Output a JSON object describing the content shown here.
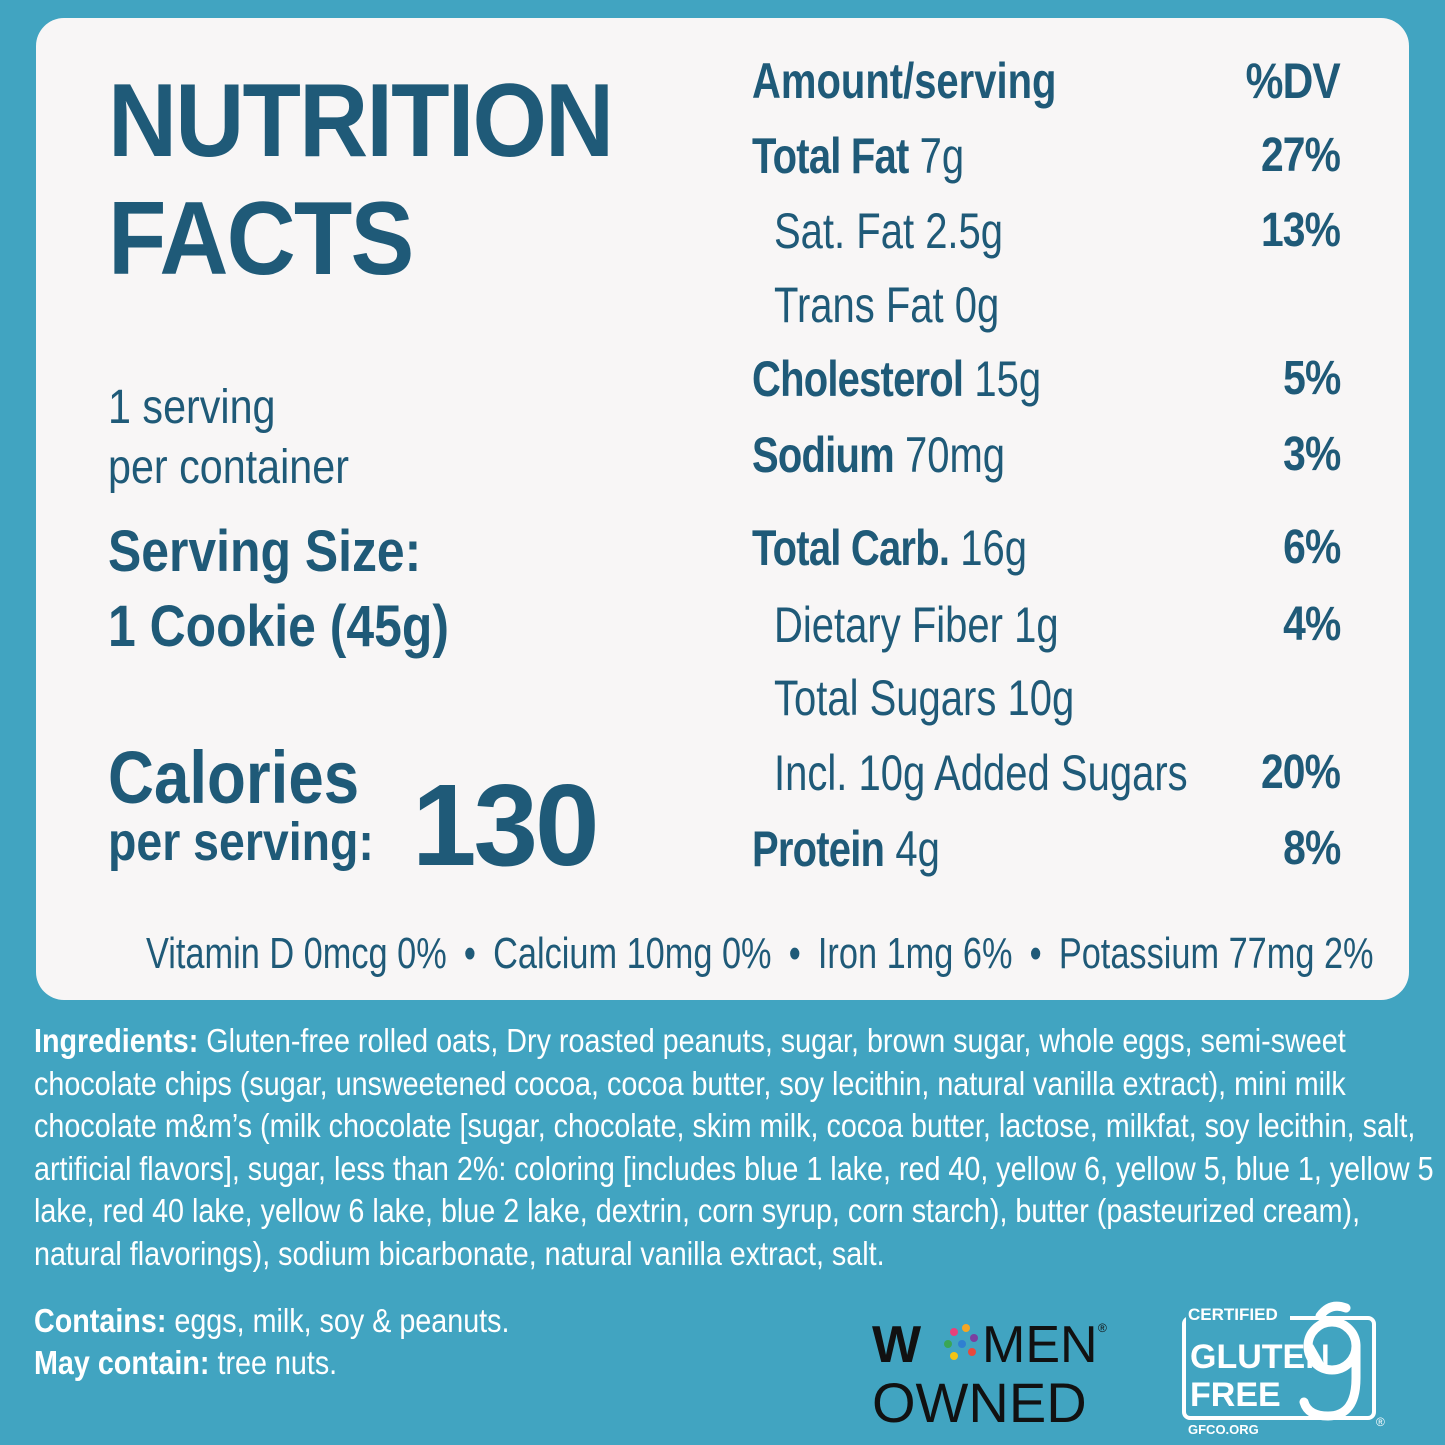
{
  "title_line1": "NUTRITION",
  "title_line2": "FACTS",
  "servings_line1": "1 serving",
  "servings_line2": "per container",
  "serving_size_label": "Serving Size:",
  "serving_size_value": "1 Cookie (45g)",
  "calories_label": "Calories",
  "calories_sub": "per serving:",
  "calories_value": "130",
  "header": {
    "amount": "Amount/serving",
    "dv": "%DV"
  },
  "nutrients": [
    {
      "name": "Total Fat",
      "amount": "7g",
      "dv": "27%"
    },
    {
      "name": "Sat. Fat",
      "amount": "2.5g",
      "dv": "13%"
    },
    {
      "name": "Trans Fat",
      "amount": "0g",
      "dv": ""
    },
    {
      "name": "Cholesterol",
      "amount": "15g",
      "dv": "5%"
    },
    {
      "name": "Sodium",
      "amount": "70mg",
      "dv": "3%"
    },
    {
      "name": "Total Carb.",
      "amount": "16g",
      "dv": "6%"
    },
    {
      "name": "Dietary Fiber",
      "amount": "1g",
      "dv": "4%"
    },
    {
      "name": "Total Sugars",
      "amount": "10g",
      "dv": ""
    },
    {
      "name": "Incl. 10g Added Sugars",
      "amount": "",
      "dv": "20%"
    },
    {
      "name": "Protein",
      "amount": "4g",
      "dv": "8%"
    }
  ],
  "vitamins": [
    "Vitamin D 0mcg 0%",
    "Calcium 10mg 0%",
    "Iron 1mg 6%",
    "Potassium 77mg 2%"
  ],
  "bullet": "•",
  "ingredients_label": "Ingredients:",
  "ingredients_text": "Gluten-free rolled oats, Dry roasted peanuts, sugar, brown sugar, whole eggs, semi-sweet chocolate chips (sugar, unsweetened cocoa, cocoa butter, soy lecithin, natural vanilla extract), mini milk chocolate m&m’s (milk chocolate [sugar, chocolate, skim milk, cocoa butter, lactose, milkfat, soy lecithin, salt, artificial flavors], sugar, less than 2%: coloring [includes blue 1 lake, red 40, yellow 6, yellow 5, blue 1, yellow 5 lake, red 40 lake, yellow 6 lake, blue 2 lake, dextrin, corn syrup, corn starch), butter (pasteurized cream), natural flavorings), sodium bicarbonate, natural vanilla extract, salt.",
  "contains_label": "Contains:",
  "contains_text": "eggs, milk, soy & peanuts.",
  "may_contain_label": "May contain:",
  "may_contain_text": "tree nuts.",
  "logo_women_owned": {
    "line1a": "W",
    "line1b": "MEN",
    "line2": "OWNED",
    "reg": "®"
  },
  "logo_gluten_free": {
    "top": "CERTIFIED",
    "mid1": "GLUTEN",
    "mid2": "FREE",
    "bottom": "GFCO.ORG",
    "reg": "®"
  },
  "colors": {
    "background": "#41a4c1",
    "panel": "#f8f6f6",
    "text_dark": "#1f5a78",
    "text_light": "#ffffff"
  }
}
